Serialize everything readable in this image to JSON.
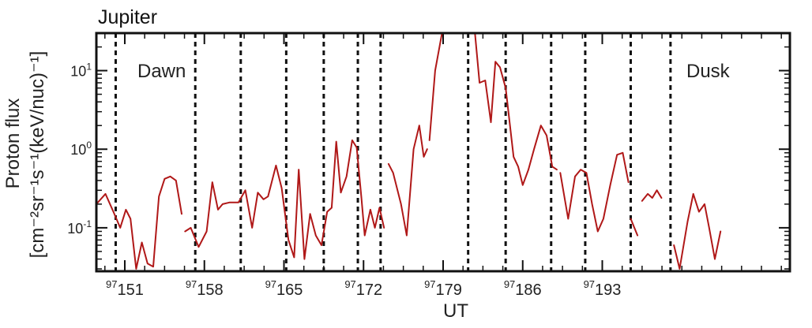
{
  "chart_data": {
    "type": "line",
    "title": "Jupiter",
    "xlabel": "UT",
    "ylabel_lines": [
      "Proton flux",
      "[cm⁻²sr⁻¹s⁻¹(keV/nuc)⁻¹]"
    ],
    "y_scale": "log",
    "xlim": [
      148.5,
      209.5
    ],
    "ylim": [
      0.028,
      30
    ],
    "x_ticks": [
      151,
      158,
      165,
      172,
      179,
      186,
      193
    ],
    "x_tick_prefix": "97",
    "y_ticks": [
      {
        "value": 0.1,
        "base": "10",
        "exp": "-1"
      },
      {
        "value": 1,
        "base": "10",
        "exp": "0"
      },
      {
        "value": 10,
        "base": "10",
        "exp": "1"
      }
    ],
    "annotations": [
      "Dawn",
      "Dusk"
    ],
    "vlines": [
      150.2,
      157.2,
      161.2,
      165.2,
      168.5,
      171.5,
      173.5,
      181.2,
      184.5,
      188.5,
      191.5,
      195.5,
      199
    ],
    "series": [
      {
        "color": "#b01818",
        "segments": [
          [
            [
              148.5,
              0.2
            ],
            [
              149.3,
              0.27
            ],
            [
              150.0,
              0.16
            ],
            [
              150.6,
              0.1
            ],
            [
              151.1,
              0.17
            ],
            [
              151.5,
              0.13
            ],
            [
              152.0,
              0.03
            ],
            [
              152.5,
              0.065
            ],
            [
              153.0,
              0.035
            ],
            [
              153.5,
              0.032
            ],
            [
              154.0,
              0.25
            ],
            [
              154.5,
              0.42
            ],
            [
              155.0,
              0.45
            ],
            [
              155.5,
              0.4
            ],
            [
              156.0,
              0.15
            ]
          ],
          [
            [
              156.3,
              0.09
            ],
            [
              156.8,
              0.1
            ],
            [
              157.5,
              0.057
            ],
            [
              158.2,
              0.09
            ],
            [
              158.7,
              0.38
            ],
            [
              159.2,
              0.17
            ],
            [
              159.6,
              0.2
            ],
            [
              160.2,
              0.21
            ],
            [
              161.0,
              0.21
            ],
            [
              161.6,
              0.3
            ],
            [
              162.2,
              0.1
            ],
            [
              162.7,
              0.28
            ],
            [
              163.2,
              0.23
            ],
            [
              163.6,
              0.25
            ],
            [
              164.3,
              0.62
            ],
            [
              164.8,
              0.32
            ],
            [
              165.4,
              0.07
            ],
            [
              165.9,
              0.042
            ],
            [
              166.3,
              0.55
            ],
            [
              166.8,
              0.04
            ],
            [
              167.3,
              0.15
            ],
            [
              167.8,
              0.08
            ],
            [
              168.3,
              0.06
            ],
            [
              168.8,
              0.16
            ],
            [
              169.2,
              0.18
            ],
            [
              169.6,
              1.25
            ],
            [
              170.0,
              0.28
            ],
            [
              170.5,
              0.45
            ],
            [
              171.0,
              1.3
            ],
            [
              171.4,
              1.05
            ],
            [
              171.8,
              0.25
            ],
            [
              172.1,
              0.08
            ],
            [
              172.6,
              0.17
            ],
            [
              173.0,
              0.1
            ],
            [
              173.4,
              0.18
            ],
            [
              173.8,
              0.1
            ]
          ],
          [
            [
              174.2,
              0.65
            ],
            [
              174.6,
              0.5
            ],
            [
              175.3,
              0.2
            ],
            [
              175.8,
              0.08
            ],
            [
              176.4,
              1.0
            ],
            [
              176.9,
              2.0
            ],
            [
              177.3,
              0.8
            ],
            [
              177.6,
              1.0
            ]
          ],
          [
            [
              177.8,
              1.3
            ],
            [
              178.3,
              10
            ],
            [
              178.9,
              30
            ]
          ],
          [
            [
              181.8,
              30
            ],
            [
              182.2,
              7
            ],
            [
              182.7,
              7.5
            ],
            [
              183.2,
              2.2
            ],
            [
              183.6,
              13
            ],
            [
              184.0,
              11
            ],
            [
              184.5,
              6
            ],
            [
              185.2,
              0.8
            ],
            [
              185.6,
              0.6
            ],
            [
              186.0,
              0.35
            ],
            [
              186.5,
              0.55
            ],
            [
              187.0,
              1.0
            ],
            [
              187.6,
              2.0
            ],
            [
              188.1,
              1.5
            ],
            [
              188.6,
              0.6
            ],
            [
              189.0,
              0.55
            ]
          ],
          [
            [
              189.3,
              0.5
            ],
            [
              190.0,
              0.13
            ],
            [
              190.6,
              0.45
            ],
            [
              191.1,
              0.55
            ],
            [
              191.6,
              0.5
            ],
            [
              192.1,
              0.2
            ],
            [
              192.6,
              0.09
            ],
            [
              193.1,
              0.13
            ],
            [
              193.7,
              0.35
            ],
            [
              194.3,
              0.85
            ],
            [
              194.8,
              0.9
            ],
            [
              195.3,
              0.38
            ]
          ],
          [
            [
              195.5,
              0.13
            ],
            [
              196.1,
              0.08
            ]
          ],
          [
            [
              196.5,
              0.22
            ],
            [
              197.0,
              0.27
            ],
            [
              197.4,
              0.24
            ],
            [
              197.8,
              0.3
            ],
            [
              198.2,
              0.24
            ]
          ],
          [
            [
              199.3,
              0.06
            ],
            [
              199.8,
              0.03
            ],
            [
              200.5,
              0.12
            ],
            [
              201.0,
              0.27
            ],
            [
              201.5,
              0.16
            ],
            [
              202.0,
              0.2
            ],
            [
              202.4,
              0.1
            ],
            [
              202.9,
              0.04
            ],
            [
              203.4,
              0.09
            ]
          ]
        ]
      }
    ]
  }
}
